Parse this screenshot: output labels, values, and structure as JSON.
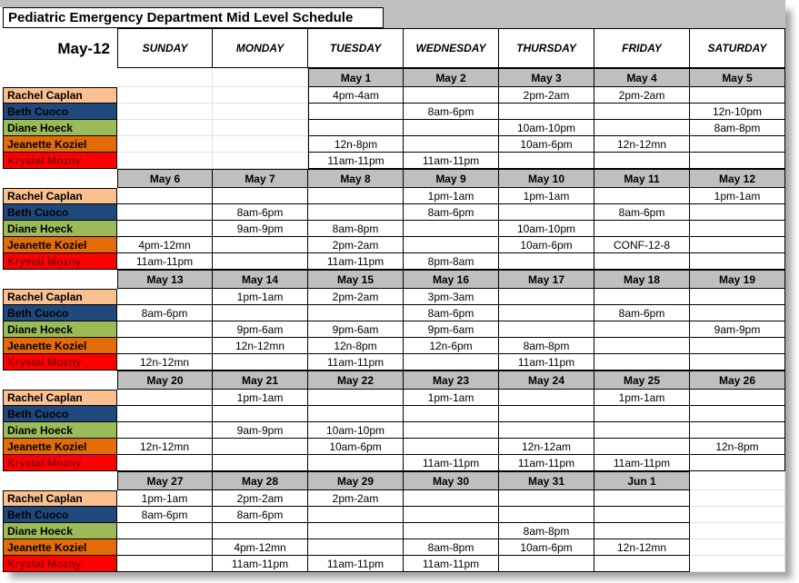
{
  "title": "Pediatric Emergency Department Mid Level Schedule",
  "month_label": "May-12",
  "day_headers": [
    "SUNDAY",
    "MONDAY",
    "TUESDAY",
    "WEDNESDAY",
    "THURSDAY",
    "FRIDAY",
    "SATURDAY"
  ],
  "people": [
    {
      "name": "Rachel Caplan",
      "color": "#FAC090",
      "text_color": "#000000"
    },
    {
      "name": "Beth Cuoco",
      "color": "#1F497D",
      "text_color": "#000000"
    },
    {
      "name": "Diane Hoeck",
      "color": "#9BBB59",
      "text_color": "#000000"
    },
    {
      "name": "Jeanette Koziel",
      "color": "#E36C09",
      "text_color": "#000000"
    },
    {
      "name": "Krystal Mozny",
      "color": "#FF0000",
      "text_color": "#8B0000"
    }
  ],
  "weeks": [
    {
      "dates": [
        "",
        "",
        "May 1",
        "May 2",
        "May 3",
        "May 4",
        "May 5"
      ],
      "rows": [
        [
          "",
          "",
          "4pm-4am",
          "",
          "2pm-2am",
          "2pm-2am",
          ""
        ],
        [
          "",
          "",
          "",
          "8am-6pm",
          "",
          "",
          "12n-10pm"
        ],
        [
          "",
          "",
          "",
          "",
          "10am-10pm",
          "",
          "8am-8pm"
        ],
        [
          "",
          "",
          "12n-8pm",
          "",
          "10am-6pm",
          "12n-12mn",
          ""
        ],
        [
          "",
          "",
          "11am-11pm",
          "11am-11pm",
          "",
          "",
          ""
        ]
      ]
    },
    {
      "dates": [
        "May 6",
        "May 7",
        "May 8",
        "May 9",
        "May 10",
        "May 11",
        "May 12"
      ],
      "rows": [
        [
          "",
          "",
          "",
          "1pm-1am",
          "1pm-1am",
          "",
          "1pm-1am"
        ],
        [
          "",
          "8am-6pm",
          "",
          "8am-6pm",
          "",
          "8am-6pm",
          ""
        ],
        [
          "",
          "9am-9pm",
          "8am-8pm",
          "",
          "10am-10pm",
          "",
          ""
        ],
        [
          "4pm-12mn",
          "",
          "2pm-2am",
          "",
          "10am-6pm",
          "CONF-12-8",
          ""
        ],
        [
          "11am-11pm",
          "",
          "11am-11pm",
          "8pm-8am",
          "",
          "",
          ""
        ]
      ]
    },
    {
      "dates": [
        "May 13",
        "May 14",
        "May 15",
        "May 16",
        "May 17",
        "May 18",
        "May 19"
      ],
      "rows": [
        [
          "",
          "1pm-1am",
          "2pm-2am",
          "3pm-3am",
          "",
          "",
          ""
        ],
        [
          "8am-6pm",
          "",
          "",
          "8am-6pm",
          "",
          "8am-6pm",
          ""
        ],
        [
          "",
          "9pm-6am",
          "9pm-6am",
          "9pm-6am",
          "",
          "",
          "9am-9pm"
        ],
        [
          "",
          "12n-12mn",
          "12n-8pm",
          "12n-6pm",
          "8am-8pm",
          "",
          ""
        ],
        [
          "12n-12mn",
          "",
          "11am-11pm",
          "",
          "11am-11pm",
          "",
          ""
        ]
      ]
    },
    {
      "dates": [
        "May 20",
        "May 21",
        "May 22",
        "May 23",
        "May 24",
        "May 25",
        "May 26"
      ],
      "rows": [
        [
          "",
          "1pm-1am",
          "",
          "1pm-1am",
          "",
          "1pm-1am",
          ""
        ],
        [
          "",
          "",
          "",
          "",
          "",
          "",
          ""
        ],
        [
          "",
          "9am-9pm",
          "10am-10pm",
          "",
          "",
          "",
          ""
        ],
        [
          "12n-12mn",
          "",
          "10am-6pm",
          "",
          "12n-12am",
          "",
          "12n-8pm"
        ],
        [
          "",
          "",
          "",
          "11am-11pm",
          "11am-11pm",
          "11am-11pm",
          ""
        ]
      ]
    },
    {
      "dates": [
        "May 27",
        "May 28",
        "May 29",
        "May 30",
        "May 31",
        "Jun 1",
        ""
      ],
      "rows": [
        [
          "1pm-1am",
          "2pm-2am",
          "2pm-2am",
          "",
          "",
          "",
          ""
        ],
        [
          "8am-6pm",
          "8am-6pm",
          "",
          "",
          "",
          "",
          ""
        ],
        [
          "",
          "",
          "",
          "",
          "8am-8pm",
          "",
          ""
        ],
        [
          "",
          "4pm-12mn",
          "",
          "8am-8pm",
          "10am-6pm",
          "12n-12mn",
          ""
        ],
        [
          "",
          "11am-11pm",
          "11am-11pm",
          "11am-11pm",
          "",
          "",
          ""
        ]
      ]
    }
  ],
  "colors": {
    "banner": "#BFBFBF",
    "strip": "#C0C0C0",
    "gridline": "#DDE2E8",
    "border": "#000000"
  }
}
